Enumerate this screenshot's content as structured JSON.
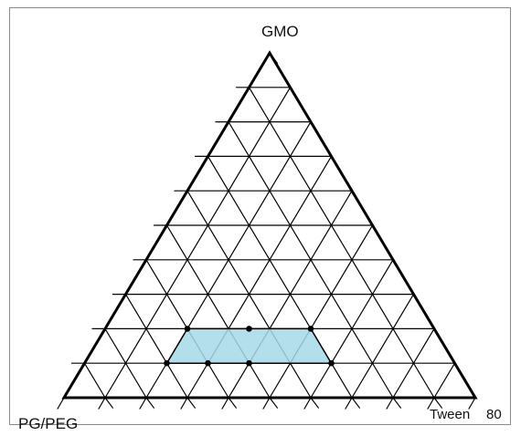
{
  "chart_data": {
    "type": "ternary",
    "vertices": {
      "top": "GMO",
      "left": "PG/PEG",
      "right_label_parts": [
        "Tween",
        "80"
      ]
    },
    "grid_divisions": 10,
    "grid_color": "#000000",
    "region_fill": "#a6d8e8",
    "region_points": [
      {
        "gmo": 0.2,
        "pgpeg": 0.6,
        "tween80": 0.2
      },
      {
        "gmo": 0.2,
        "pgpeg": 0.3,
        "tween80": 0.5
      },
      {
        "gmo": 0.1,
        "pgpeg": 0.3,
        "tween80": 0.6
      },
      {
        "gmo": 0.1,
        "pgpeg": 0.7,
        "tween80": 0.2
      }
    ],
    "marked_points": [
      {
        "gmo": 0.2,
        "pgpeg": 0.6,
        "tween80": 0.2
      },
      {
        "gmo": 0.2,
        "pgpeg": 0.45,
        "tween80": 0.35
      },
      {
        "gmo": 0.2,
        "pgpeg": 0.3,
        "tween80": 0.5
      },
      {
        "gmo": 0.1,
        "pgpeg": 0.7,
        "tween80": 0.2
      },
      {
        "gmo": 0.1,
        "pgpeg": 0.6,
        "tween80": 0.3
      },
      {
        "gmo": 0.1,
        "pgpeg": 0.5,
        "tween80": 0.4
      },
      {
        "gmo": 0.1,
        "pgpeg": 0.3,
        "tween80": 0.6
      }
    ]
  }
}
